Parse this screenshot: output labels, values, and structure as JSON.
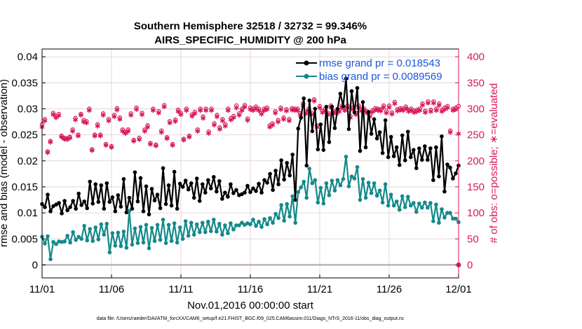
{
  "colors": {
    "rmse": "#000000",
    "bias": "#138a8a",
    "obs": "#d8185a",
    "legend_text": "#1a55e0",
    "grid": "#e6d6da",
    "zero_line": "#b0a4a8"
  },
  "chart_data": {
    "type": "line",
    "title_line1": "Southern Hemisphere 32518 / 32732 = 99.346%",
    "title_line2": "AIRS_SPECIFIC_HUMIDITY @ 200 hPa",
    "xlabel": "Nov.01,2016 00:00:00 start",
    "ylabel_left": "rmse and bias (model - observation)",
    "ylabel_right": "# of obs: o=possible; ∗=evaluated",
    "footnote": "data file: /Users/raeder/DAI/ATM_forcXX/CAM6_setup/f.e21.FHIST_BGC.f09_025.CAM6assim.011/Diags_NTrS_2016-11/obs_diag_output.nc",
    "x_ticks": [
      "11/01",
      "11/06",
      "11/11",
      "11/16",
      "11/21",
      "11/26",
      "12/01"
    ],
    "x_range_days": [
      0,
      30
    ],
    "y_left_ticks": [
      "0",
      "0.005",
      "0.01",
      "0.015",
      "0.02",
      "0.025",
      "0.03",
      "0.035",
      "0.04"
    ],
    "y_left_range": [
      -0.0025,
      0.0415
    ],
    "y_right_ticks": [
      "0",
      "50",
      "100",
      "150",
      "200",
      "250",
      "300",
      "350",
      "400"
    ],
    "y_right_range": [
      -25,
      415
    ],
    "legend": [
      {
        "label": "rmse grand pr = 0.018543"
      },
      {
        "label": "bias grand pr = 0.0089569"
      }
    ],
    "series": [
      {
        "name": "rmse",
        "axis": "left",
        "values": [
          0.0117,
          0.0111,
          0.0135,
          0.0103,
          0.0113,
          0.0116,
          0.0119,
          0.0099,
          0.0123,
          0.0105,
          0.0111,
          0.0123,
          0.0108,
          0.0137,
          0.0115,
          0.0122,
          0.0109,
          0.016,
          0.0118,
          0.0155,
          0.0121,
          0.0153,
          0.0108,
          0.0157,
          0.0121,
          0.013,
          0.0103,
          0.0134,
          0.0112,
          0.0165,
          0.0101,
          0.0129,
          0.0108,
          0.0178,
          0.0122,
          0.0167,
          0.0103,
          0.0151,
          0.0097,
          0.0146,
          0.0124,
          0.0135,
          0.0109,
          0.0186,
          0.0117,
          0.0153,
          0.0114,
          0.0179,
          0.0108,
          0.0156,
          0.015,
          0.0162,
          0.0145,
          0.0157,
          0.0129,
          0.0166,
          0.0123,
          0.0155,
          0.0139,
          0.0163,
          0.0147,
          0.0169,
          0.0141,
          0.0161,
          0.0127,
          0.0139,
          0.0131,
          0.0155,
          0.0138,
          0.0144,
          0.0134,
          0.0136,
          0.0139,
          0.0152,
          0.014,
          0.0147,
          0.0142,
          0.0156,
          0.0139,
          0.0163,
          0.0158,
          0.0175,
          0.0144,
          0.0181,
          0.0155,
          0.0201,
          0.0164,
          0.0196,
          0.0172,
          0.0212,
          0.0125,
          0.0262,
          0.0283,
          0.032,
          0.0191,
          0.0316,
          0.0257,
          0.03,
          0.0222,
          0.027,
          0.0221,
          0.0304,
          0.0236,
          0.0304,
          0.0263,
          0.03,
          0.0329,
          0.0305,
          0.0358,
          0.0261,
          0.0334,
          0.0293,
          0.034,
          0.0219,
          0.0313,
          0.0226,
          0.0294,
          0.0252,
          0.028,
          0.0243,
          0.0255,
          0.0215,
          0.0278,
          0.0207,
          0.0246,
          0.0209,
          0.0226,
          0.0192,
          0.0249,
          0.0201,
          0.0256,
          0.0207,
          0.0221,
          0.0186,
          0.0224,
          0.0202,
          0.0228,
          0.0202,
          0.0224,
          0.0163,
          0.0226,
          0.017,
          0.0247,
          0.0141,
          0.0193,
          0.0187,
          0.0166,
          0.0176,
          0.0191
        ]
      },
      {
        "name": "bias",
        "axis": "left",
        "values": [
          0.0054,
          0.0041,
          0.0055,
          0.0011,
          0.0044,
          0.004,
          0.0045,
          0.0044,
          0.0045,
          0.0056,
          0.0043,
          0.0063,
          0.0048,
          0.0054,
          0.005,
          0.0075,
          0.0047,
          0.0069,
          0.0046,
          0.0072,
          0.0049,
          0.0078,
          0.0058,
          0.0079,
          0.0024,
          0.0061,
          0.0037,
          0.0062,
          0.0036,
          0.0064,
          0.0033,
          0.0104,
          0.0039,
          0.007,
          0.0042,
          0.0073,
          0.0043,
          0.0077,
          0.0032,
          0.0071,
          0.0046,
          0.0077,
          0.0048,
          0.0087,
          0.0042,
          0.0077,
          0.0046,
          0.008,
          0.0043,
          0.0072,
          0.005,
          0.0084,
          0.0056,
          0.0081,
          0.0058,
          0.0078,
          0.0063,
          0.0081,
          0.0063,
          0.0083,
          0.0065,
          0.0087,
          0.0064,
          0.0079,
          0.0058,
          0.0076,
          0.0061,
          0.008,
          0.0068,
          0.0076,
          0.0076,
          0.0081,
          0.0077,
          0.008,
          0.0078,
          0.0087,
          0.0075,
          0.0083,
          0.0073,
          0.0088,
          0.0078,
          0.009,
          0.0081,
          0.0098,
          0.009,
          0.0115,
          0.0085,
          0.0117,
          0.0093,
          0.0132,
          0.0081,
          0.014,
          0.0149,
          0.016,
          0.0129,
          0.0185,
          0.0157,
          0.0163,
          0.012,
          0.0148,
          0.0118,
          0.0157,
          0.0134,
          0.0162,
          0.0143,
          0.0163,
          0.0153,
          0.0165,
          0.0208,
          0.0151,
          0.017,
          0.0166,
          0.0188,
          0.0125,
          0.0165,
          0.0129,
          0.0158,
          0.0138,
          0.0157,
          0.0133,
          0.0143,
          0.012,
          0.0155,
          0.0114,
          0.0135,
          0.0114,
          0.0122,
          0.0106,
          0.0132,
          0.0111,
          0.0131,
          0.0114,
          0.0119,
          0.0102,
          0.0118,
          0.011,
          0.012,
          0.011,
          0.0119,
          0.0084,
          0.0116,
          0.0081,
          0.0107,
          0.0091,
          0.01,
          0.01,
          0.0089,
          0.0089,
          0.0082
        ]
      },
      {
        "name": "obs_possible",
        "axis": "right",
        "values": [
          270,
          280,
          218,
          238,
          292,
          286,
          290,
          248,
          244,
          243,
          246,
          260,
          282,
          250,
          290,
          278,
          276,
          300,
          222,
          250,
          270,
          250,
          291,
          232,
          280,
          228,
          288,
          301,
          283,
          260,
          255,
          260,
          291,
          240,
          302,
          244,
          292,
          260,
          268,
          234,
          300,
          231,
          295,
          258,
          307,
          245,
          276,
          232,
          279,
          298,
          292,
          242,
          300,
          248,
          289,
          294,
          260,
          300,
          285,
          300,
          256,
          300,
          272,
          288,
          264,
          280,
          270,
          300,
          282,
          286,
          306,
          291,
          300,
          307,
          281,
          302,
          300,
          304,
          300,
          293,
          300,
          302,
          268,
          272,
          295,
          278,
          302,
          283,
          299,
          280,
          301,
          300,
          300,
          291,
          310,
          294,
          300,
          292,
          318,
          268,
          305,
          296,
          300,
          292,
          306,
          296,
          294,
          298,
          306,
          300,
          306,
          286,
          302,
          292,
          306,
          299,
          300,
          295,
          288,
          297,
          301,
          300,
          299,
          306,
          295,
          306,
          293,
          313,
          299,
          301,
          300,
          304,
          298,
          300,
          296,
          298,
          300,
          310,
          296,
          314,
          298,
          314,
          300,
          310,
          298,
          302,
          305,
          258,
          300,
          302,
          305
        ]
      },
      {
        "name": "obs_evaluated",
        "axis": "right",
        "values": [
          265,
          277,
          216,
          236,
          289,
          283,
          287,
          246,
          242,
          241,
          244,
          257,
          279,
          248,
          288,
          275,
          273,
          297,
          220,
          248,
          267,
          248,
          288,
          230,
          277,
          226,
          285,
          298,
          280,
          257,
          253,
          257,
          288,
          238,
          299,
          241,
          289,
          257,
          265,
          232,
          297,
          229,
          292,
          255,
          304,
          243,
          273,
          230,
          276,
          295,
          289,
          240,
          297,
          246,
          286,
          291,
          257,
          297,
          282,
          297,
          253,
          297,
          269,
          285,
          261,
          277,
          267,
          297,
          279,
          283,
          302,
          288,
          297,
          304,
          278,
          299,
          297,
          301,
          297,
          290,
          297,
          299,
          265,
          269,
          292,
          275,
          299,
          280,
          296,
          277,
          298,
          297,
          297,
          288,
          307,
          291,
          297,
          289,
          315,
          265,
          302,
          293,
          297,
          289,
          303,
          293,
          291,
          295,
          303,
          297,
          303,
          283,
          299,
          289,
          303,
          296,
          297,
          292,
          285,
          294,
          298,
          297,
          296,
          303,
          292,
          303,
          290,
          310,
          296,
          298,
          297,
          301,
          295,
          297,
          293,
          295,
          297,
          307,
          293,
          311,
          295,
          311,
          297,
          307,
          295,
          299,
          302,
          255,
          297,
          299,
          252
        ]
      }
    ]
  }
}
